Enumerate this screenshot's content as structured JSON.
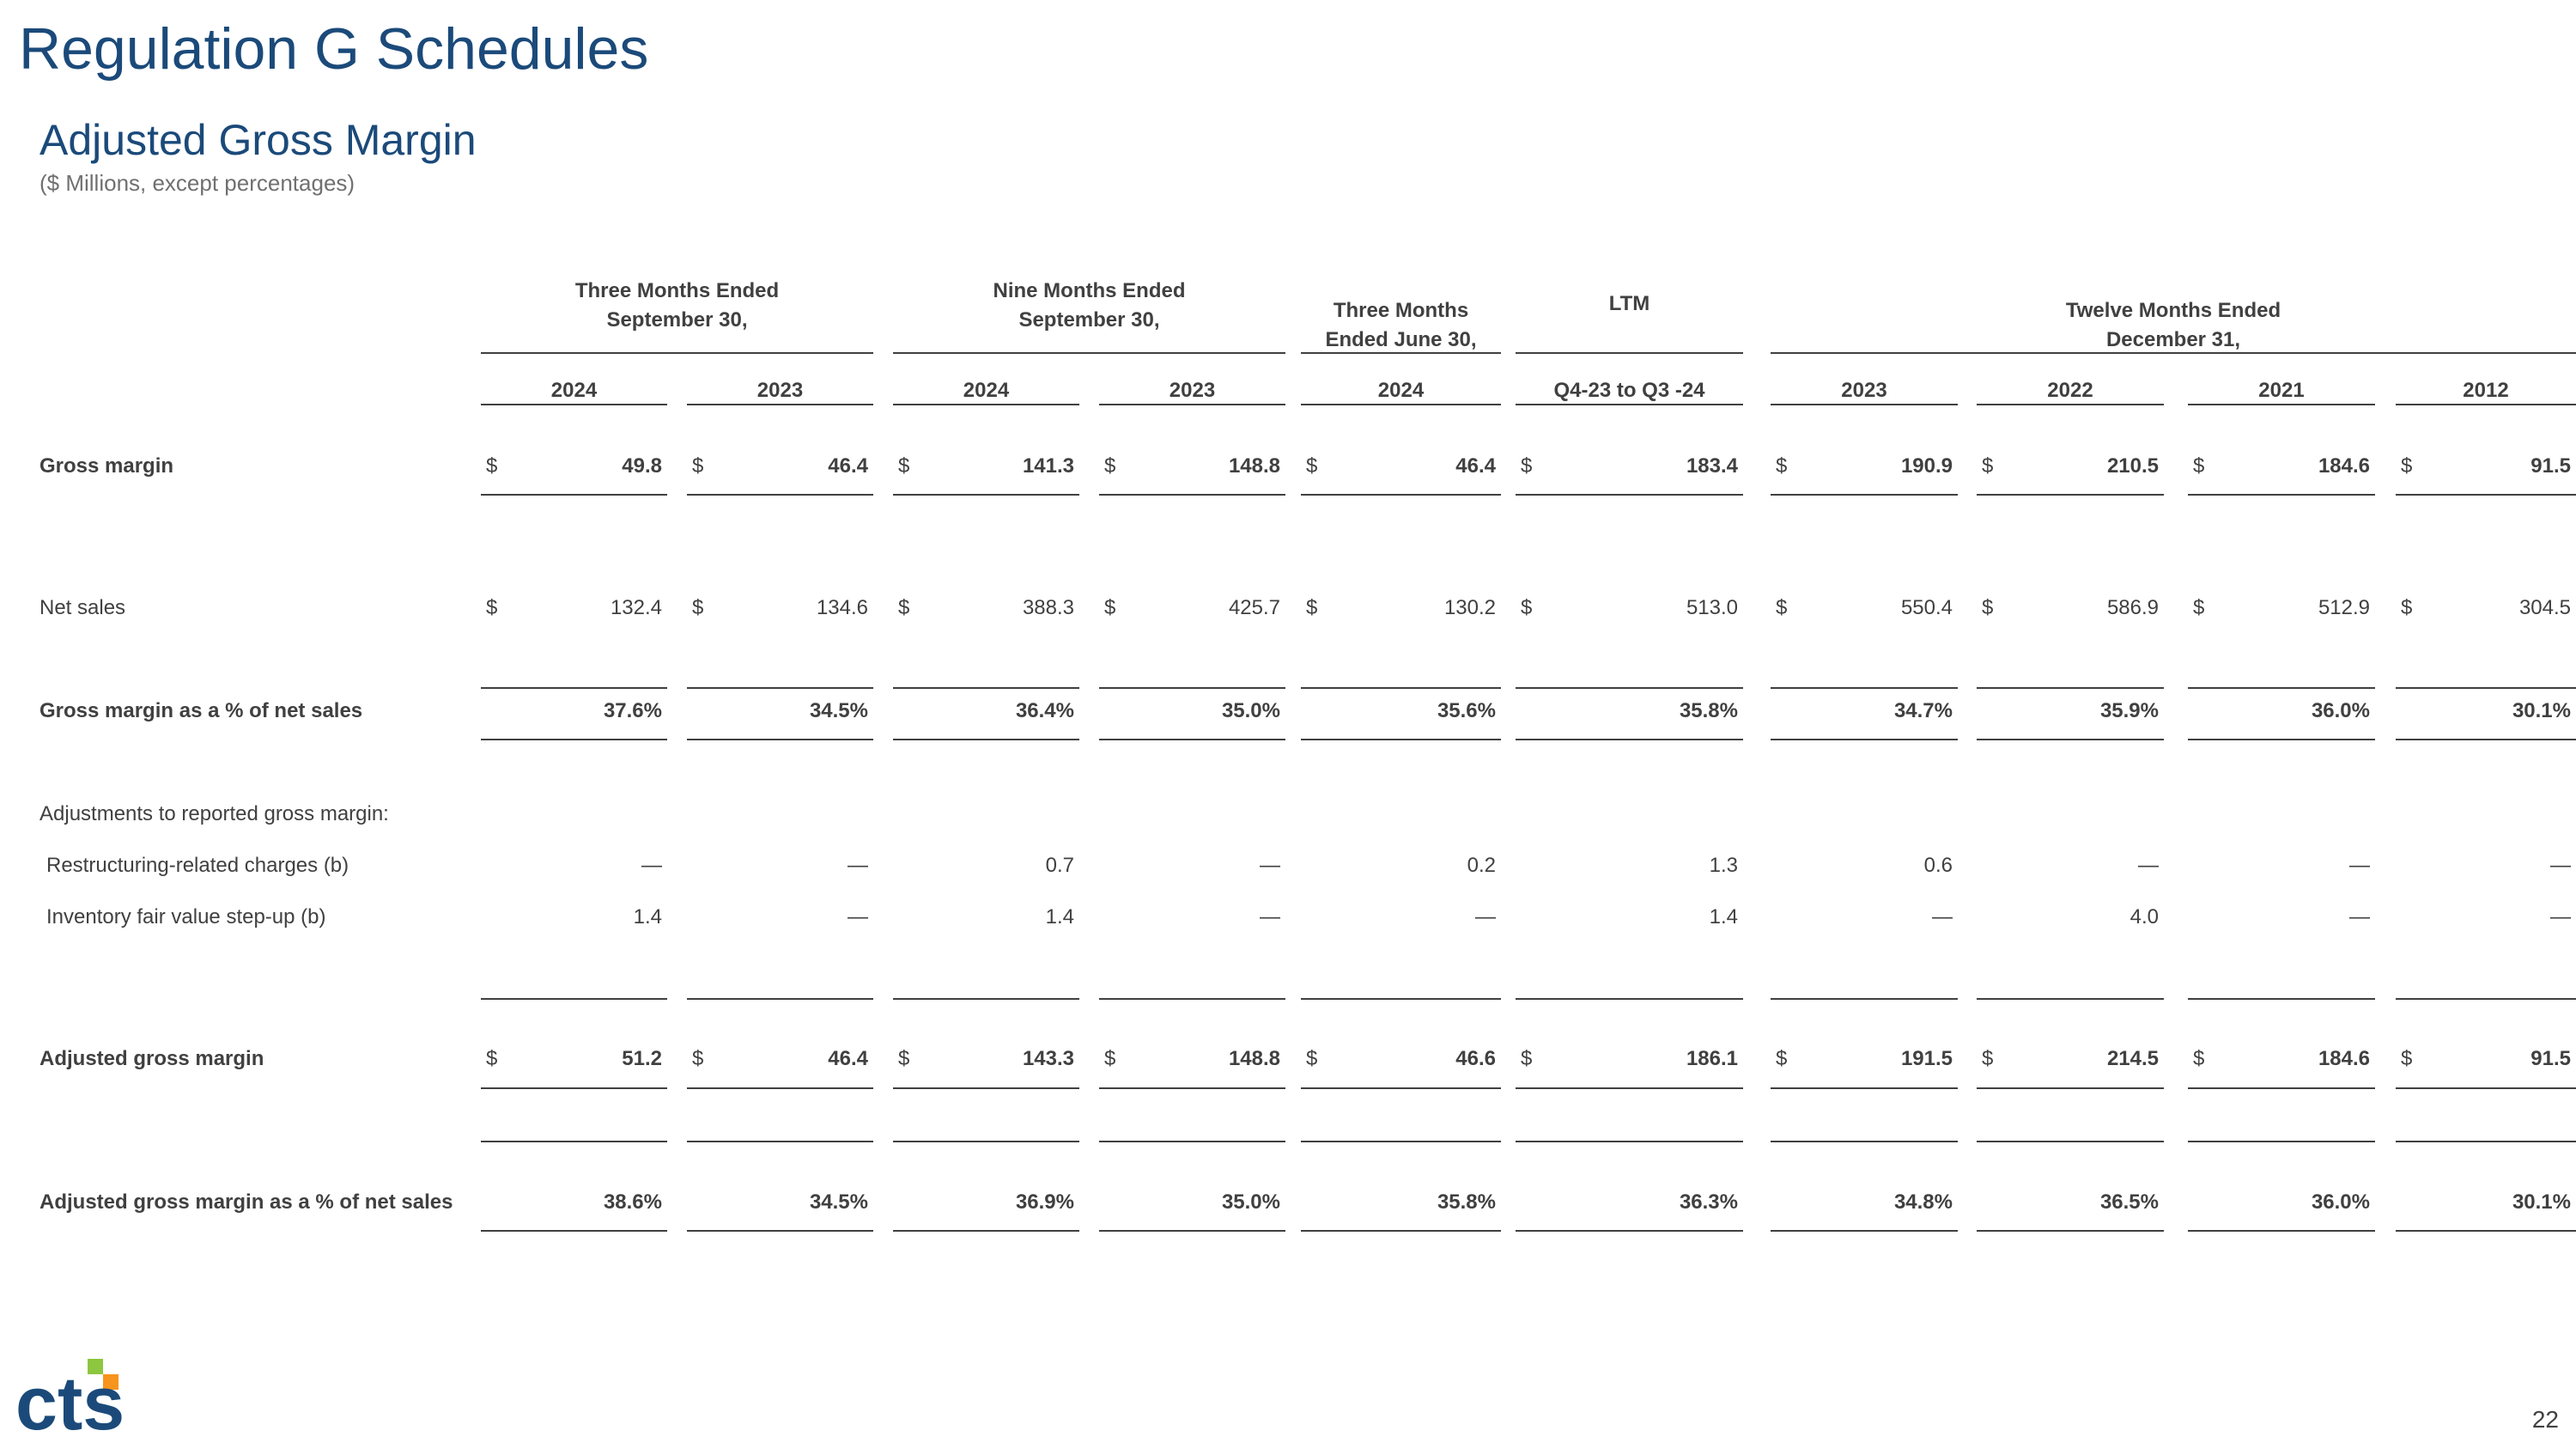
{
  "page": {
    "title": "Regulation G Schedules",
    "subtitle": "Adjusted Gross Margin",
    "units_note": "($ Millions, except percentages)",
    "page_number": "22",
    "brand_colors": {
      "blue": "#1b4a7a",
      "green": "#8dc63f",
      "orange": "#f7941d"
    }
  },
  "table": {
    "group_headers": [
      {
        "text": [
          "Three Months Ended",
          "September 30,"
        ]
      },
      {
        "text": [
          "Nine Months Ended",
          "September 30,"
        ]
      },
      {
        "text": [
          "Three Months",
          "Ended June 30,"
        ]
      },
      {
        "text": [
          "LTM"
        ]
      },
      {
        "text": [
          "Twelve Months Ended",
          "December 31,"
        ]
      }
    ],
    "columns": [
      "2024",
      "2023",
      "2024",
      "2023",
      "2024",
      "Q4-23 to Q3 -24",
      "2023",
      "2022",
      "2021",
      "2012"
    ],
    "rows": [
      {
        "label": "Gross margin",
        "bold": true,
        "currency": "$",
        "values": [
          "49.8",
          "46.4",
          "141.3",
          "148.8",
          "46.4",
          "183.4",
          "190.9",
          "210.5",
          "184.6",
          "91.5"
        ]
      },
      {
        "label": "Net sales",
        "bold": false,
        "currency": "$",
        "values": [
          "132.4",
          "134.6",
          "388.3",
          "425.7",
          "130.2",
          "513.0",
          "550.4",
          "586.9",
          "512.9",
          "304.5"
        ]
      },
      {
        "label": "Gross margin as a % of net sales",
        "bold": true,
        "currency": "",
        "values": [
          "37.6%",
          "34.5%",
          "36.4%",
          "35.0%",
          "35.6%",
          "35.8%",
          "34.7%",
          "35.9%",
          "36.0%",
          "30.1%"
        ]
      },
      {
        "label": "Adjustments to reported gross margin:",
        "bold": false,
        "currency": "",
        "values": []
      },
      {
        "label": "Restructuring-related charges (b)",
        "bold": false,
        "currency": "",
        "values": [
          "—",
          "—",
          "0.7",
          "—",
          "0.2",
          "1.3",
          "0.6",
          "—",
          "—",
          "—"
        ]
      },
      {
        "label": "Inventory fair value step-up (b)",
        "bold": false,
        "currency": "",
        "values": [
          "1.4",
          "—",
          "1.4",
          "—",
          "—",
          "1.4",
          "—",
          "4.0",
          "—",
          "—"
        ]
      },
      {
        "label": "Adjusted gross margin",
        "bold": true,
        "currency": "$",
        "values": [
          "51.2",
          "46.4",
          "143.3",
          "148.8",
          "46.6",
          "186.1",
          "191.5",
          "214.5",
          "184.6",
          "91.5"
        ]
      },
      {
        "label": "Adjusted gross margin as a % of net sales",
        "bold": true,
        "currency": "",
        "values": [
          "38.6%",
          "34.5%",
          "36.9%",
          "35.0%",
          "35.8%",
          "36.3%",
          "34.8%",
          "36.5%",
          "36.0%",
          "30.1%"
        ]
      }
    ]
  }
}
